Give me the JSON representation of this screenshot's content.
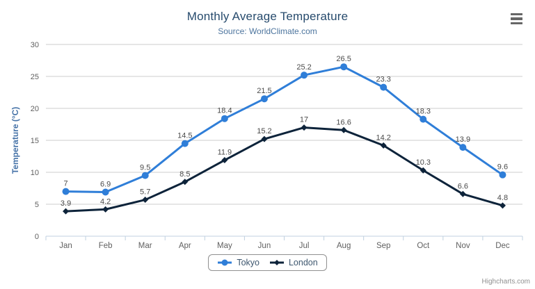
{
  "colors": {
    "title": "#274b6d",
    "subtitle": "#4d759e",
    "axis_label": "#606060",
    "axis_title": "#4572A7",
    "grid_line": "#cccccc",
    "axis_line": "#C0D0E0",
    "tick": "#C0D0E0",
    "data_label": "#4a4a4a",
    "legend_text": "#3E576F",
    "legend_border": "#909090",
    "credits": "#909090",
    "menu_icon": "#666666"
  },
  "export_menu": {
    "icon": "hamburger-menu-icon"
  },
  "credits": {
    "label": "Highcharts.com"
  },
  "chart_data": {
    "type": "line",
    "title": "Monthly Average Temperature",
    "subtitle": "Source: WorldClimate.com",
    "categories": [
      "Jan",
      "Feb",
      "Mar",
      "Apr",
      "May",
      "Jun",
      "Jul",
      "Aug",
      "Sep",
      "Oct",
      "Nov",
      "Dec"
    ],
    "series": [
      {
        "name": "Tokyo",
        "color": "#2f7ed8",
        "marker": "circle",
        "values": [
          7,
          6.9,
          9.5,
          14.5,
          18.4,
          21.5,
          25.2,
          26.5,
          23.3,
          18.3,
          13.9,
          9.6
        ]
      },
      {
        "name": "London",
        "color": "#0d233a",
        "marker": "diamond",
        "values": [
          3.9,
          4.2,
          5.7,
          8.5,
          11.9,
          15.2,
          17,
          16.6,
          14.2,
          10.3,
          6.6,
          4.8
        ]
      }
    ],
    "xlabel": "",
    "ylabel": "Temperature (°C)",
    "ylim": [
      0,
      30
    ],
    "ytick_interval": 5,
    "grid": true,
    "data_labels": true,
    "legend_position": "bottom"
  }
}
